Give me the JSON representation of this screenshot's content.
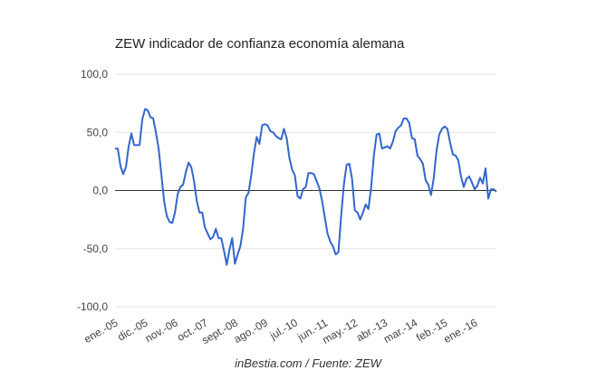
{
  "chart_data": {
    "type": "line",
    "title": "ZEW indicador de confianza economía alemana",
    "source": "inBestia.com / Fuente: ZEW",
    "ylim": [
      -100,
      100
    ],
    "yticks": [
      "100,0",
      "50,0",
      "0,0",
      "-50,0",
      "-100,0"
    ],
    "ytick_values": [
      100,
      50,
      0,
      -50,
      -100
    ],
    "xticks": [
      "ene.-05",
      "dic.-05",
      "nov.-06",
      "oct.-07",
      "sept.-08",
      "ago.-09",
      "jul.-10",
      "jun.-11",
      "may.-12",
      "abr.-13",
      "mar.-14",
      "feb.-15",
      "ene.-16"
    ],
    "xtick_index": [
      0,
      11,
      22,
      33,
      44,
      55,
      66,
      77,
      88,
      99,
      110,
      121,
      132
    ],
    "grid": true,
    "colors": {
      "line": "#3366cc",
      "zero_line": "#333333",
      "grid": "#e6e6e6"
    },
    "series": [
      {
        "values": [
          36,
          36,
          21,
          14,
          20,
          38,
          49,
          39,
          39,
          39,
          61,
          70,
          69,
          63,
          62,
          50,
          36,
          14,
          -9,
          -22,
          -27,
          -28,
          -19,
          -3,
          3,
          5,
          16,
          24,
          20,
          8,
          -9,
          -19,
          -19,
          -32,
          -37,
          -42,
          -40,
          -33,
          -41,
          -41,
          -52,
          -64,
          -51,
          -41,
          -63,
          -55,
          -48,
          -33,
          -6,
          -2,
          13,
          32,
          46,
          40,
          56,
          57,
          56,
          51,
          50,
          47,
          45,
          44,
          53,
          45,
          28,
          18,
          13,
          -5,
          -7,
          1,
          3,
          15,
          15,
          14,
          8,
          2,
          -9,
          -23,
          -37,
          -44,
          -48,
          -55,
          -53,
          -22,
          5,
          22,
          23,
          10,
          -17,
          -19,
          -25,
          -19,
          -12,
          -16,
          2,
          30,
          48,
          49,
          36,
          37,
          38,
          36,
          42,
          51,
          54,
          56,
          62,
          62,
          58,
          45,
          44,
          30,
          27,
          23,
          9,
          5,
          -4,
          11,
          34,
          48,
          53,
          55,
          53,
          41,
          31,
          30,
          26,
          12,
          3,
          10,
          12,
          7,
          1,
          4,
          11,
          6,
          19,
          -7,
          1,
          1,
          -1
        ]
      }
    ]
  }
}
